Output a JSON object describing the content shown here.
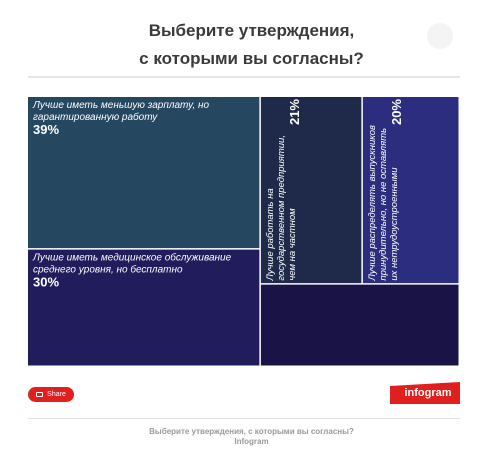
{
  "title_lines": [
    "Выберите утверждения,",
    "с которыми вы согласны?"
  ],
  "share_label": "Share",
  "logo_text": "infogram",
  "caption_lines": [
    "Выберите утверждения,  с которыми вы согласны?",
    "Infogram"
  ],
  "colors": {
    "tile_1": "#264760",
    "tile_2": "#211c5b",
    "tile_3": "#1f2a4a",
    "tile_4": "#2d2d80",
    "tile_5": "#191346",
    "accent": "#e0201f"
  },
  "chart_data": {
    "type": "treemap",
    "items": [
      {
        "label": "Лучше иметь меньшую зарплату, но гарантированную работу",
        "value": 39,
        "value_label": "39%"
      },
      {
        "label": "Лучше иметь медицинское обслуживание среднего уровня, но бесплатно",
        "value": 30,
        "value_label": "30%"
      },
      {
        "label": "Лучше работать на государственном предприятии, чем на частном",
        "value": 21,
        "value_label": "21%"
      },
      {
        "label": "Лучше распределять выпускников принудительно, но не оставлять их нетрудоустроенными",
        "value": 20,
        "value_label": "20%"
      },
      {
        "label": "",
        "value": 18,
        "value_label": ""
      }
    ]
  }
}
